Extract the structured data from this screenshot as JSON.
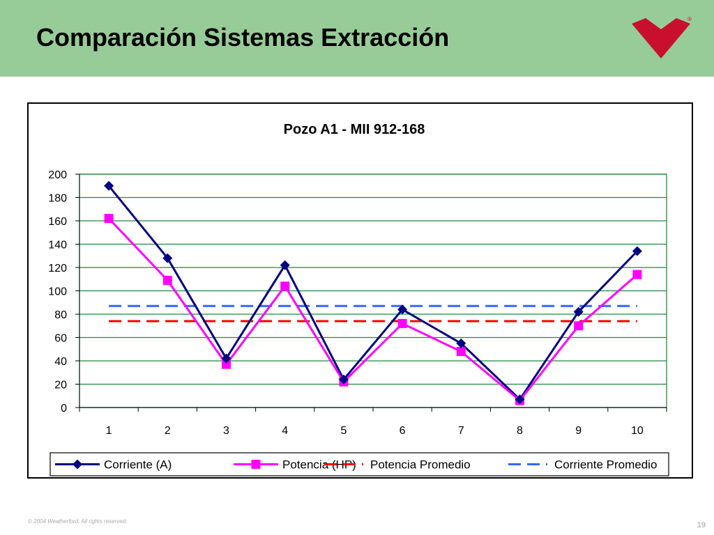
{
  "slide": {
    "title": "Comparación Sistemas Extracción",
    "copyright": "© 2004 Weatherford. All rights reserved.",
    "page_number": "19",
    "logo_registered_mark": "®",
    "header_color": "#97cc98",
    "logo_color": "#c8102e"
  },
  "chart_data": {
    "type": "line",
    "title": "Pozo A1 - MII 912-168",
    "xlabel": "",
    "ylabel": "",
    "categories": [
      "1",
      "2",
      "3",
      "4",
      "5",
      "6",
      "7",
      "8",
      "9",
      "10"
    ],
    "ylim": [
      0,
      200
    ],
    "yticks": [
      0,
      20,
      40,
      60,
      80,
      100,
      120,
      140,
      160,
      180,
      200
    ],
    "grid": true,
    "legend_position": "bottom",
    "series": [
      {
        "name": "Corriente (A)",
        "values": [
          190,
          128,
          42,
          122,
          24,
          84,
          55,
          7,
          82,
          134
        ],
        "color": "#000080",
        "marker": "diamond",
        "dash": "solid"
      },
      {
        "name": "Potencia (HP)",
        "values": [
          162,
          109,
          37,
          104,
          22,
          72,
          48,
          6,
          70,
          114
        ],
        "color": "#ff00ff",
        "marker": "square",
        "dash": "solid"
      },
      {
        "name": "Potencia Promedio",
        "values": [
          74,
          74,
          74,
          74,
          74,
          74,
          74,
          74,
          74,
          74
        ],
        "color": "#ff0000",
        "marker": "none",
        "dash": "dashed"
      },
      {
        "name": "Corriente Promedio",
        "values": [
          87,
          87,
          87,
          87,
          87,
          87,
          87,
          87,
          87,
          87
        ],
        "color": "#3366ff",
        "marker": "none",
        "dash": "dashed"
      }
    ]
  }
}
